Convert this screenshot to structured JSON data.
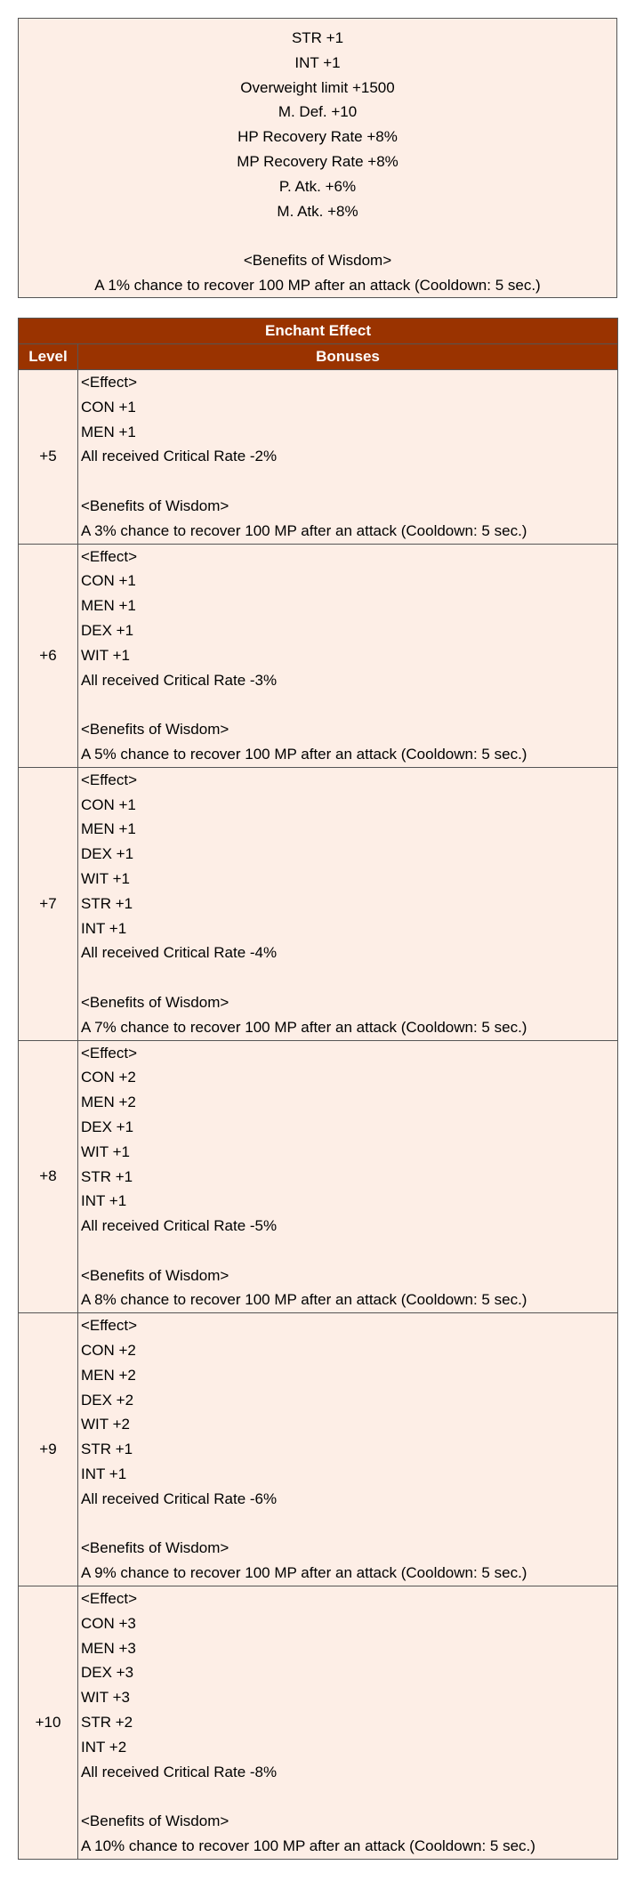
{
  "base_effects": {
    "lines": [
      "STR +1",
      "INT +1",
      "Overweight limit +1500",
      "M. Def. +10",
      "HP Recovery Rate +8%",
      "MP Recovery Rate +8%",
      "P. Atk. +6%",
      "M. Atk. +8%",
      "",
      "<Benefits of Wisdom>",
      "A 1% chance to recover 100 MP after an attack (Cooldown: 5 sec.)"
    ]
  },
  "enchant_table": {
    "title": "Enchant Effect",
    "col_level": "Level",
    "col_bonuses": "Bonuses",
    "rows": [
      {
        "level": "+5",
        "lines": [
          "<Effect>",
          "CON +1",
          "MEN +1",
          "All received Critical Rate -2%",
          "",
          "<Benefits of Wisdom>",
          "A 3% chance to recover 100 MP after an attack (Cooldown: 5 sec.)"
        ]
      },
      {
        "level": "+6",
        "lines": [
          "<Effect>",
          "CON +1",
          "MEN +1",
          "DEX +1",
          "WIT +1",
          "All received Critical Rate -3%",
          "",
          "<Benefits of Wisdom>",
          "A 5% chance to recover 100 MP after an attack (Cooldown: 5 sec.)"
        ]
      },
      {
        "level": "+7",
        "lines": [
          "<Effect>",
          "CON +1",
          "MEN +1",
          "DEX +1",
          "WIT +1",
          "STR +1",
          "INT +1",
          "All received Critical Rate -4%",
          "",
          "<Benefits of Wisdom>",
          "A 7% chance to recover 100 MP after an attack (Cooldown: 5 sec.)"
        ]
      },
      {
        "level": "+8",
        "lines": [
          "<Effect>",
          "CON +2",
          "MEN +2",
          "DEX +1",
          "WIT +1",
          "STR +1",
          "INT +1",
          "All received Critical Rate -5%",
          "",
          "<Benefits of Wisdom>",
          "A 8% chance to recover 100 MP after an attack (Cooldown: 5 sec.)"
        ]
      },
      {
        "level": "+9",
        "lines": [
          "<Effect>",
          "CON +2",
          "MEN +2",
          "DEX +2",
          "WIT +2",
          "STR +1",
          "INT +1",
          "All received Critical Rate -6%",
          "",
          "<Benefits of Wisdom>",
          "A 9% chance to recover 100 MP after an attack (Cooldown: 5 sec.)"
        ]
      },
      {
        "level": "+10",
        "lines": [
          "<Effect>",
          "CON +3",
          "MEN +3",
          "DEX +3",
          "WIT +3",
          "STR +2",
          "INT +2",
          "All received Critical Rate -8%",
          "",
          "<Benefits of Wisdom>",
          "A 10% chance to recover 100 MP after an attack (Cooldown: 5 sec.)"
        ]
      }
    ]
  }
}
